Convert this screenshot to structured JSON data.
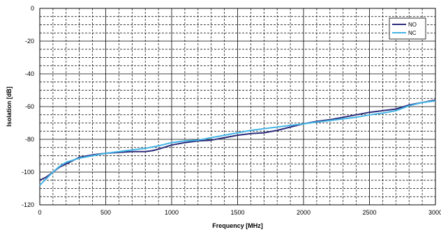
{
  "chart_data": {
    "type": "line",
    "xlabel": "Frequency [MHz]",
    "ylabel": "Isolation [dB]",
    "xlim": [
      0,
      3000
    ],
    "ylim": [
      -120,
      0
    ],
    "x_ticks": [
      0,
      500,
      1000,
      1500,
      2000,
      2500,
      3000
    ],
    "y_ticks": [
      0,
      -20,
      -40,
      -60,
      -80,
      -100,
      -120
    ],
    "grid": true,
    "legend_position": "top-right",
    "series": [
      {
        "name": "NO",
        "color": "#2a2a7a",
        "x": [
          0,
          50,
          100,
          150,
          200,
          300,
          400,
          500,
          600,
          700,
          800,
          850,
          900,
          1000,
          1100,
          1200,
          1300,
          1400,
          1500,
          1600,
          1700,
          1800,
          1900,
          2000,
          2100,
          2200,
          2300,
          2400,
          2500,
          2600,
          2700,
          2800,
          2900,
          3000
        ],
        "y": [
          -105,
          -103,
          -100,
          -97,
          -95,
          -91,
          -89.5,
          -88.5,
          -88,
          -87.5,
          -87.5,
          -87,
          -86,
          -83.5,
          -82,
          -81,
          -80.5,
          -79,
          -77.5,
          -76.5,
          -76,
          -74.5,
          -72.5,
          -70.5,
          -69,
          -68,
          -66.5,
          -65,
          -63.5,
          -62.5,
          -61.5,
          -59,
          -57.5,
          -56
        ]
      },
      {
        "name": "NC",
        "color": "#44b4e6",
        "x": [
          0,
          50,
          100,
          150,
          200,
          300,
          400,
          500,
          600,
          700,
          800,
          900,
          1000,
          1100,
          1200,
          1300,
          1400,
          1500,
          1600,
          1700,
          1800,
          1900,
          2000,
          2100,
          2200,
          2300,
          2400,
          2500,
          2600,
          2700,
          2800,
          2900,
          3000
        ],
        "y": [
          -108,
          -104,
          -100,
          -96.5,
          -94,
          -91.5,
          -90,
          -88.5,
          -87.5,
          -86.5,
          -85.5,
          -84,
          -82,
          -81,
          -80.5,
          -79,
          -77.5,
          -76,
          -74.5,
          -73.5,
          -72.5,
          -71.5,
          -70.5,
          -69.5,
          -68.5,
          -67.5,
          -66.5,
          -65,
          -64,
          -62.5,
          -59.5,
          -57.5,
          -56.5
        ]
      }
    ]
  }
}
